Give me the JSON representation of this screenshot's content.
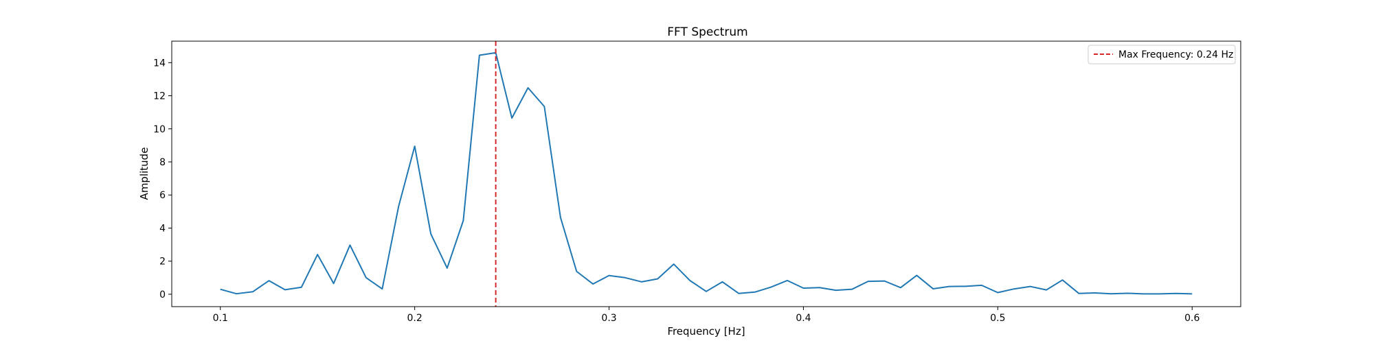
{
  "chart_data": {
    "type": "line",
    "title": "FFT Spectrum",
    "xlabel": "Frequency [Hz]",
    "ylabel": "Amplitude",
    "xlim": [
      0.075,
      0.625
    ],
    "ylim": [
      -0.75,
      15.3
    ],
    "x_ticks": [
      0.1,
      0.2,
      0.3,
      0.4,
      0.5,
      0.6
    ],
    "x_tick_labels": [
      "0.1",
      "0.2",
      "0.3",
      "0.4",
      "0.5",
      "0.6"
    ],
    "y_ticks": [
      0,
      2,
      4,
      6,
      8,
      10,
      12,
      14
    ],
    "y_tick_labels": [
      "0",
      "2",
      "4",
      "6",
      "8",
      "10",
      "12",
      "14"
    ],
    "grid": false,
    "legend_position": "top-right",
    "series": [
      {
        "color": "#1f77b4",
        "x": [
          0.1,
          0.1083,
          0.1167,
          0.125,
          0.1333,
          0.1417,
          0.15,
          0.1583,
          0.1667,
          0.175,
          0.1833,
          0.1917,
          0.2,
          0.2083,
          0.2167,
          0.225,
          0.2333,
          0.2417,
          0.25,
          0.2583,
          0.2667,
          0.275,
          0.2833,
          0.2917,
          0.3,
          0.3083,
          0.3167,
          0.325,
          0.3333,
          0.3417,
          0.35,
          0.3583,
          0.3667,
          0.375,
          0.3833,
          0.3917,
          0.4,
          0.4083,
          0.4167,
          0.425,
          0.4333,
          0.4417,
          0.45,
          0.4583,
          0.4667,
          0.475,
          0.4833,
          0.4917,
          0.5,
          0.5083,
          0.5167,
          0.525,
          0.5333,
          0.5417,
          0.55,
          0.5583,
          0.5667,
          0.575,
          0.5833,
          0.5917,
          0.6
        ],
        "y": [
          0.3,
          0.03,
          0.15,
          0.82,
          0.27,
          0.42,
          2.4,
          0.65,
          2.97,
          1.0,
          0.32,
          5.3,
          8.95,
          3.65,
          1.58,
          4.45,
          14.45,
          14.6,
          10.65,
          12.48,
          11.35,
          4.65,
          1.38,
          0.62,
          1.13,
          1.0,
          0.75,
          0.93,
          1.82,
          0.82,
          0.17,
          0.75,
          0.05,
          0.13,
          0.43,
          0.83,
          0.37,
          0.4,
          0.24,
          0.3,
          0.78,
          0.8,
          0.4,
          1.14,
          0.33,
          0.47,
          0.48,
          0.54,
          0.1,
          0.32,
          0.47,
          0.26,
          0.86,
          0.05,
          0.08,
          0.03,
          0.06,
          0.02,
          0.02,
          0.05,
          0.02
        ]
      }
    ],
    "vlines": [
      {
        "x": 0.2417,
        "color": "#d62728",
        "style": "dashed",
        "label": "Max Frequency: 0.24 Hz"
      }
    ]
  }
}
